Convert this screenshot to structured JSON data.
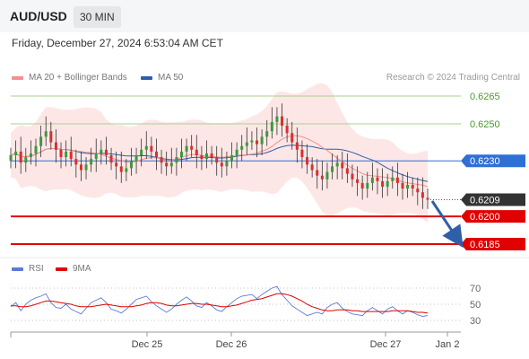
{
  "header": {
    "pair": "AUD/USD",
    "timeframe": "30 MIN"
  },
  "datetime": "Friday, December 27, 2024 6:53:04 AM CET",
  "legend": {
    "ma20": {
      "label": "MA 20 + Bollinger Bands",
      "color": "#f4908e"
    },
    "ma50": {
      "label": "MA 50",
      "color": "#2e5fa8"
    },
    "rsi": {
      "label": "RSI",
      "color": "#5b7bd5"
    },
    "ma9": {
      "label": "9MA",
      "color": "#e00000"
    }
  },
  "credit": "Research © 2024 Trading Central",
  "chart_data": [
    {
      "type": "candlestick",
      "ylim": [
        0.618,
        0.627
      ],
      "x_ticks": [
        "Dec 25",
        "Dec 26",
        "Dec 27",
        "Jan 2"
      ],
      "levels": [
        {
          "label": "0.6265",
          "value": 0.6265,
          "kind": "resistance"
        },
        {
          "label": "0.6250",
          "value": 0.625,
          "kind": "resistance"
        },
        {
          "label": "0.6230",
          "value": 0.623,
          "kind": "pivot"
        },
        {
          "label": "0.6209",
          "value": 0.6209,
          "kind": "last-price"
        },
        {
          "label": "0.6200",
          "value": 0.62,
          "kind": "target"
        },
        {
          "label": "0.6185",
          "value": 0.6185,
          "kind": "target"
        }
      ],
      "close_path": [
        0.6233,
        0.6235,
        0.6229,
        0.6232,
        0.6234,
        0.6238,
        0.6243,
        0.6246,
        0.624,
        0.6236,
        0.6232,
        0.6235,
        0.6231,
        0.6228,
        0.6225,
        0.6228,
        0.6231,
        0.6234,
        0.6236,
        0.6233,
        0.6229,
        0.6227,
        0.6224,
        0.6226,
        0.623,
        0.6233,
        0.6236,
        0.6238,
        0.6235,
        0.6232,
        0.6229,
        0.6227,
        0.6229,
        0.6232,
        0.6235,
        0.6238,
        0.6236,
        0.6233,
        0.6231,
        0.6234,
        0.6232,
        0.6229,
        0.6227,
        0.623,
        0.6233,
        0.6236,
        0.6238,
        0.624,
        0.6241,
        0.6239,
        0.6243,
        0.6246,
        0.6251,
        0.6254,
        0.6249,
        0.6245,
        0.624,
        0.6236,
        0.6232,
        0.6228,
        0.6225,
        0.6222,
        0.622,
        0.6224,
        0.6227,
        0.6229,
        0.6226,
        0.6223,
        0.622,
        0.6218,
        0.6215,
        0.6218,
        0.6221,
        0.6219,
        0.6216,
        0.6219,
        0.6221,
        0.6218,
        0.6215,
        0.6217,
        0.6215,
        0.6213,
        0.621,
        0.6209
      ]
    },
    {
      "type": "line",
      "series": [
        {
          "name": "RSI",
          "color": "#5b7bd5"
        },
        {
          "name": "9MA",
          "color": "#e00000"
        }
      ],
      "y_ticks": [
        70,
        50,
        30
      ],
      "ylim": [
        25,
        75
      ],
      "rsi_path": [
        47,
        52,
        42,
        50,
        55,
        58,
        60,
        63,
        52,
        46,
        45,
        50,
        44,
        41,
        38,
        45,
        52,
        55,
        58,
        52,
        44,
        42,
        39,
        44,
        50,
        56,
        58,
        60,
        53,
        48,
        44,
        40,
        44,
        50,
        55,
        59,
        54,
        48,
        46,
        52,
        48,
        43,
        41,
        47,
        52,
        57,
        60,
        61,
        62,
        57,
        62,
        66,
        70,
        72,
        62,
        55,
        48,
        44,
        40,
        36,
        38,
        40,
        38,
        46,
        50,
        52,
        45,
        41,
        38,
        37,
        36,
        42,
        46,
        42,
        38,
        44,
        47,
        42,
        38,
        42,
        40,
        37,
        35,
        36
      ],
      "ma9_path": [
        48,
        48,
        47,
        47,
        48,
        50,
        52,
        54,
        54,
        53,
        52,
        51,
        50,
        48,
        47,
        47,
        47,
        48,
        49,
        50,
        49,
        48,
        47,
        47,
        47,
        48,
        49,
        51,
        52,
        52,
        51,
        49,
        48,
        48,
        49,
        50,
        51,
        51,
        50,
        50,
        49,
        48,
        47,
        47,
        48,
        49,
        51,
        53,
        55,
        56,
        57,
        59,
        61,
        63,
        63,
        62,
        60,
        57,
        54,
        50,
        47,
        45,
        43,
        42,
        42,
        43,
        43,
        43,
        42,
        42,
        41,
        41,
        41,
        41,
        41,
        41,
        42,
        42,
        42,
        42,
        41,
        40,
        40,
        39
      ]
    }
  ]
}
